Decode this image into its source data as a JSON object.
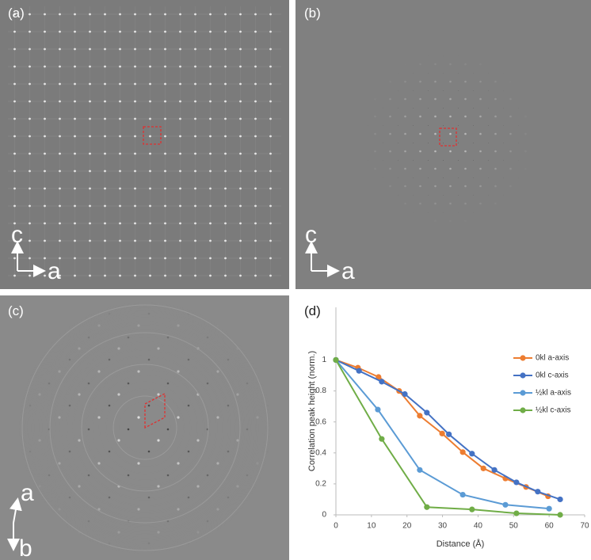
{
  "panels": [
    {
      "label": "(a)",
      "axis_labels": [
        "c",
        "a"
      ]
    },
    {
      "label": "(b)",
      "axis_labels": [
        "c",
        "a"
      ]
    },
    {
      "label": "(c)",
      "axis_labels": [
        "a",
        "b"
      ]
    }
  ],
  "chart_data": {
    "type": "line",
    "label": "(d)",
    "x_label": "Distance (Å)",
    "y_label": "Correlation peak height (norm.)",
    "xlim": [
      0,
      70
    ],
    "xticks": [
      0,
      10,
      20,
      30,
      40,
      50,
      60,
      70
    ],
    "ylim": [
      0,
      1.34
    ],
    "yticks": [
      0,
      0.2,
      0.4,
      0.6,
      0.8,
      1
    ],
    "grid": false,
    "legend": "upper right",
    "series": [
      {
        "name": "0kl a-axis",
        "color": "#ed7d31",
        "x": [
          0,
          6.2,
          12.0,
          17.8,
          23.6,
          29.9,
          35.7,
          41.5,
          47.7,
          53.5,
          59.7
        ],
        "values": [
          1,
          0.95,
          0.89,
          0.8,
          0.64,
          0.525,
          0.405,
          0.3,
          0.235,
          0.18,
          0.12
        ]
      },
      {
        "name": "0kl c-axis",
        "color": "#4472c4",
        "x": [
          0,
          6.5,
          12.9,
          19.4,
          25.6,
          31.8,
          38.3,
          44.6,
          50.8,
          56.8,
          63.1
        ],
        "values": [
          1,
          0.93,
          0.86,
          0.78,
          0.66,
          0.52,
          0.395,
          0.29,
          0.21,
          0.15,
          0.1
        ]
      },
      {
        "name": "½kl a-axis",
        "color": "#5b9bd5",
        "x": [
          0,
          11.8,
          23.6,
          35.7,
          47.7,
          60
        ],
        "values": [
          1,
          0.68,
          0.29,
          0.13,
          0.065,
          0.04
        ]
      },
      {
        "name": "½kl c-axis",
        "color": "#70ad47",
        "x": [
          0,
          12.9,
          25.6,
          38.3,
          50.8,
          63.1
        ],
        "values": [
          1,
          0.49,
          0.05,
          0.035,
          0.01,
          0
        ]
      }
    ]
  }
}
